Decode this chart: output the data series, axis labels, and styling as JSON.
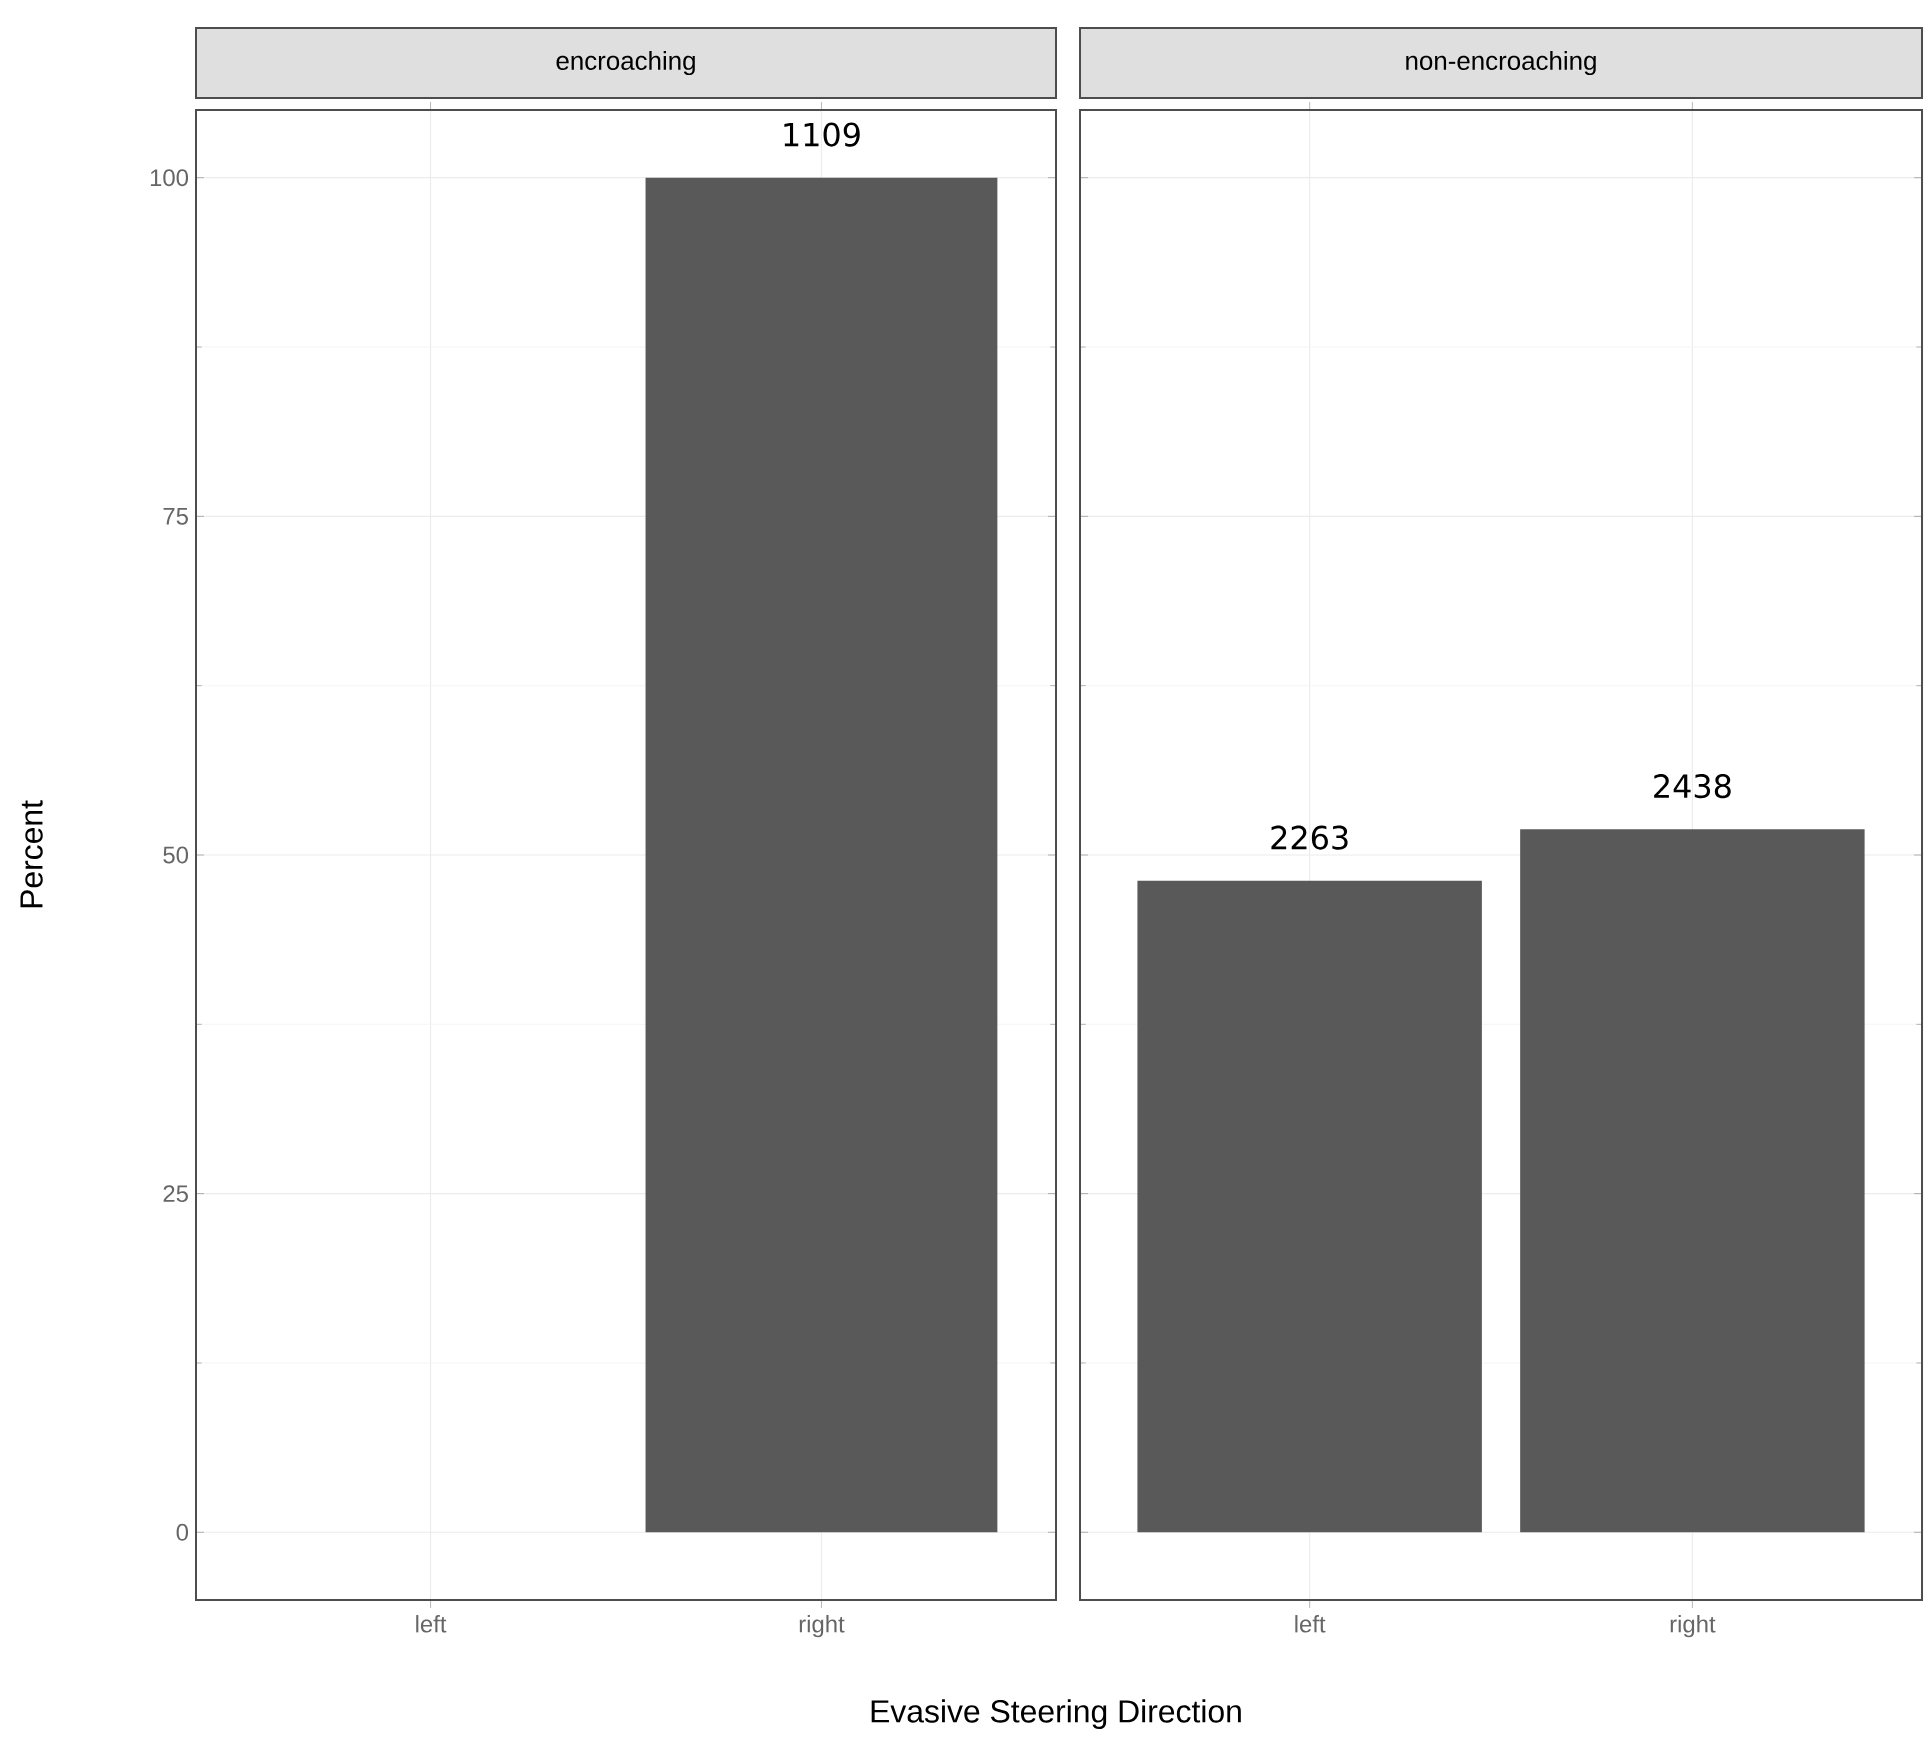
{
  "chart_data": [
    {
      "type": "bar",
      "title": "encroaching",
      "ylabel": "Percent",
      "xlabel": "Evasive Steering Direction",
      "categories": [
        "left",
        "right"
      ],
      "values": [
        null,
        100
      ],
      "annotations": [
        {
          "text": "1109",
          "x": "right",
          "y": 100
        }
      ],
      "color": "#595959",
      "ylim": [
        -5,
        105
      ],
      "yticks": [
        0,
        25,
        50,
        75,
        100
      ],
      "grid": true
    },
    {
      "type": "bar",
      "title": "non-encroaching",
      "categories": [
        "left",
        "right"
      ],
      "values": [
        48.1,
        51.9
      ],
      "annotations": [
        {
          "text": "2263",
          "x": "left",
          "y": 48.1
        },
        {
          "text": "2438",
          "x": "right",
          "y": 51.9
        }
      ],
      "color": "#595959",
      "ylim": [
        -5,
        105
      ],
      "yticks": [
        0,
        25,
        50,
        75,
        100
      ],
      "grid": true,
      "tick_labels": "x"
    }
  ]
}
